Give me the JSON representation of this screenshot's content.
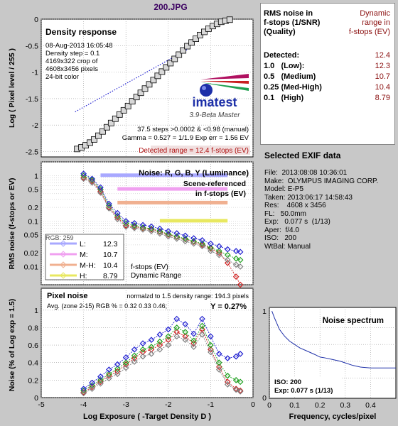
{
  "title": "200.JPG",
  "density_panel": {
    "label": "Density response",
    "info": [
      "08-Aug-2013 16:05:48",
      "Density step = 0.1",
      "4169x322 crop of",
      "4608x3456 pixels",
      "24-bit color"
    ],
    "logo": "imatest",
    "version": "3.9-Beta  Master",
    "steps_line": "37.5 steps >0.0002 & <0.98 (manual)",
    "gamma_line": "Gamma = 0.527 = 1/1.9  Exp err = 1.56 EV",
    "detected_range": "Detected range = 12.4 f-stops (EV)",
    "ylabel": "Log ( Pixel level / 255 )"
  },
  "noise_panel": {
    "label": "Noise: R, G, B, Y (Luminance)",
    "scene1": "Scene-referenced",
    "scene2": "in f-stops (EV)",
    "ylabel": "RMS noise (f-stops or EV)",
    "partial": "RGB: 259",
    "legend": [
      {
        "label": "L:",
        "value": "12.3",
        "color": "#a8a8ff"
      },
      {
        "label": "M:",
        "value": "10.7",
        "color": "#f0a0f0"
      },
      {
        "label": "M-H:",
        "value": "10.4",
        "color": "#f0b090"
      },
      {
        "label": "H:",
        "value": "8.79",
        "color": "#e8e860"
      }
    ],
    "legend_note1": "f-stops (EV)",
    "legend_note2": "Dynamic Range"
  },
  "pixel_panel": {
    "label": "Pixel noise",
    "norm": "normalzd to 1.5 density range: 194.3 pixels",
    "avg": "Avg. (zone 2-15) RGB % = 0.32  0.33  0.46;",
    "y": "Y = 0.27%",
    "ylabel": "Noise (% of Log exp = 1.5)",
    "xlabel": "Log Exposure ( -Target Density D )"
  },
  "spectrum_panel": {
    "label": "Noise spectrum",
    "iso": "ISO:   200",
    "exp": "Exp:   0.077 s   (1/13)",
    "xlabel": "Frequency, cycles/pixel"
  },
  "dr_table": {
    "h1": "RMS noise in",
    "h2": "f-stops (1/SNR)",
    "h3": "(Quality)",
    "h4": "Dynamic",
    "h5": "range in",
    "h6": "f-stops (EV)",
    "rows": [
      {
        "label": "Detected:",
        "value": "12.4"
      },
      {
        "label": "1.0   (Low):",
        "value": "12.3"
      },
      {
        "label": "0.5   (Medium)",
        "value": "10.7"
      },
      {
        "label": "0.25 (Med-High)",
        "value": "10.4"
      },
      {
        "label": "0.1   (High)",
        "value": "8.79"
      }
    ]
  },
  "exif": {
    "title": "Selected EXIF data",
    "lines": [
      "File:  2013:08:08 10:36:01",
      "Make:  OLYMPUS IMAGING CORP.",
      "Model: E-P5",
      "Taken: 2013:06:17 14:58:43",
      "Res:    4608 x 3456",
      "FL:   50.0mm",
      "Exp:   0.077 s  (1/13)",
      "Aper:  f/4.0",
      "ISO:   200",
      "WtBal: Manual"
    ]
  },
  "chart_data": [
    {
      "type": "scatter",
      "name": "density",
      "xlim": [
        -5,
        0
      ],
      "ylim": [
        -2.6,
        0
      ],
      "x_ticks": [
        -5,
        -4,
        -3,
        -2,
        -1,
        0
      ],
      "y_ticks": [
        0,
        -0.5,
        -1,
        -1.5,
        -2,
        -2.5
      ],
      "y_tick_labels": [
        "0",
        "-0.5",
        "-1",
        "-1.5",
        "-2",
        "-2.5"
      ],
      "x": [
        -4.15,
        -4.05,
        -3.95,
        -3.85,
        -3.75,
        -3.65,
        -3.55,
        -3.45,
        -3.35,
        -3.25,
        -3.15,
        -3.05,
        -2.95,
        -2.85,
        -2.75,
        -2.65,
        -2.55,
        -2.45,
        -2.35,
        -2.25,
        -2.15,
        -2.05,
        -1.95,
        -1.85,
        -1.75,
        -1.65,
        -1.55,
        -1.45,
        -1.35,
        -1.25,
        -1.15,
        -1.05,
        -0.95,
        -0.85,
        -0.75,
        -0.65,
        -0.55
      ],
      "y": [
        -2.45,
        -2.42,
        -2.38,
        -2.33,
        -2.27,
        -2.2,
        -2.12,
        -2.04,
        -1.96,
        -1.88,
        -1.8,
        -1.72,
        -1.64,
        -1.55,
        -1.47,
        -1.39,
        -1.31,
        -1.23,
        -1.15,
        -1.07,
        -0.99,
        -0.91,
        -0.83,
        -0.75,
        -0.67,
        -0.59,
        -0.51,
        -0.44,
        -0.37,
        -0.3,
        -0.24,
        -0.18,
        -0.13,
        -0.09,
        -0.05,
        -0.03,
        -0.01
      ],
      "fit_x": [
        -4.2,
        -3.3,
        -2.4,
        -1.5
      ],
      "fit_y": [
        -1.75,
        -1.35,
        -0.95,
        -0.55
      ]
    },
    {
      "type": "line",
      "name": "noise",
      "log_y": true,
      "xlim": [
        -5,
        0
      ],
      "ylim": [
        0.004,
        2
      ],
      "y_ticks": [
        1,
        0.5,
        0.2,
        0.1,
        0.05,
        0.02,
        0.01
      ],
      "y_tick_labels": [
        "1",
        "0.5",
        "0.2",
        "0.1",
        "0.05",
        "0.02",
        "0.01"
      ],
      "x": [
        -4.0,
        -3.8,
        -3.6,
        -3.4,
        -3.2,
        -3.0,
        -2.8,
        -2.6,
        -2.4,
        -2.2,
        -2.0,
        -1.8,
        -1.6,
        -1.4,
        -1.2,
        -1.0,
        -0.8,
        -0.6,
        -0.4,
        -0.3
      ],
      "series": [
        {
          "name": "R",
          "color": "#d02020",
          "values": [
            0.9,
            0.75,
            0.45,
            0.2,
            0.12,
            0.08,
            0.075,
            0.07,
            0.065,
            0.058,
            0.05,
            0.045,
            0.04,
            0.035,
            0.03,
            0.025,
            0.02,
            0.012,
            0.006,
            0.003
          ]
        },
        {
          "name": "G",
          "color": "#20a020",
          "values": [
            1.0,
            0.8,
            0.5,
            0.22,
            0.13,
            0.09,
            0.08,
            0.072,
            0.068,
            0.06,
            0.052,
            0.046,
            0.041,
            0.036,
            0.032,
            0.026,
            0.022,
            0.018,
            0.015,
            0.014
          ]
        },
        {
          "name": "B",
          "color": "#2020d0",
          "values": [
            1.1,
            0.85,
            0.55,
            0.24,
            0.15,
            0.1,
            0.09,
            0.082,
            0.076,
            0.068,
            0.06,
            0.054,
            0.048,
            0.042,
            0.038,
            0.032,
            0.028,
            0.024,
            0.022,
            0.021
          ]
        },
        {
          "name": "Y",
          "color": "#808080",
          "values": [
            0.85,
            0.7,
            0.42,
            0.19,
            0.11,
            0.075,
            0.07,
            0.065,
            0.06,
            0.053,
            0.046,
            0.041,
            0.036,
            0.032,
            0.028,
            0.022,
            0.018,
            0.014,
            0.011,
            0.01
          ]
        }
      ],
      "dr_bars": [
        {
          "name": "L",
          "color": "#a8a8ff",
          "x0": -3.6,
          "x1": -0.6,
          "y": 1.0
        },
        {
          "name": "M",
          "color": "#f0a0f0",
          "x0": -3.2,
          "x1": -0.6,
          "y": 0.5
        },
        {
          "name": "M-H",
          "color": "#f0b090",
          "x0": -3.2,
          "x1": -0.6,
          "y": 0.25
        },
        {
          "name": "H",
          "color": "#e8e860",
          "x0": -2.2,
          "x1": -0.6,
          "y": 0.1
        }
      ]
    },
    {
      "type": "line",
      "name": "pixel_noise",
      "xlim": [
        -5,
        0
      ],
      "ylim": [
        0,
        1.25
      ],
      "x_ticks": [
        -5,
        -4,
        -3,
        -2,
        -1,
        0
      ],
      "y_ticks": [
        0,
        0.2,
        0.4,
        0.6,
        0.8,
        1
      ],
      "y_tick_labels": [
        "0",
        "0.2",
        "0.4",
        "0.6",
        "0.8",
        "1"
      ],
      "x": [
        -4.0,
        -3.8,
        -3.6,
        -3.4,
        -3.2,
        -3.0,
        -2.8,
        -2.6,
        -2.4,
        -2.2,
        -2.0,
        -1.8,
        -1.6,
        -1.4,
        -1.2,
        -1.0,
        -0.8,
        -0.6,
        -0.4,
        -0.3
      ],
      "series": [
        {
          "name": "R",
          "color": "#d02020",
          "values": [
            0.06,
            0.12,
            0.18,
            0.25,
            0.3,
            0.38,
            0.45,
            0.52,
            0.55,
            0.6,
            0.66,
            0.75,
            0.7,
            0.62,
            0.78,
            0.55,
            0.35,
            0.18,
            0.1,
            0.08
          ]
        },
        {
          "name": "G",
          "color": "#20a020",
          "values": [
            0.08,
            0.14,
            0.2,
            0.27,
            0.33,
            0.4,
            0.48,
            0.55,
            0.58,
            0.64,
            0.7,
            0.8,
            0.75,
            0.65,
            0.82,
            0.6,
            0.4,
            0.25,
            0.2,
            0.18
          ]
        },
        {
          "name": "B",
          "color": "#2020d0",
          "values": [
            0.1,
            0.17,
            0.24,
            0.32,
            0.38,
            0.46,
            0.55,
            0.62,
            0.66,
            0.72,
            0.78,
            0.9,
            0.84,
            0.73,
            0.9,
            0.7,
            0.5,
            0.45,
            0.47,
            0.5
          ]
        },
        {
          "name": "Y",
          "color": "#808080",
          "values": [
            0.05,
            0.1,
            0.16,
            0.22,
            0.27,
            0.34,
            0.41,
            0.47,
            0.5,
            0.55,
            0.6,
            0.7,
            0.66,
            0.58,
            0.72,
            0.52,
            0.32,
            0.15,
            0.09,
            0.07
          ]
        }
      ]
    },
    {
      "type": "line",
      "name": "spectrum",
      "xlim": [
        0,
        0.5
      ],
      "ylim": [
        0,
        1
      ],
      "x_ticks": [
        0,
        0.1,
        0.2,
        0.3,
        0.4
      ],
      "y_ticks": [
        0,
        1
      ],
      "y_tick_labels": [
        "0",
        "1"
      ],
      "x": [
        0.01,
        0.02,
        0.04,
        0.06,
        0.08,
        0.1,
        0.12,
        0.15,
        0.18,
        0.2,
        0.22,
        0.25,
        0.28,
        0.3,
        0.33,
        0.36,
        0.4,
        0.45,
        0.5
      ],
      "values": [
        1.0,
        0.92,
        0.78,
        0.7,
        0.64,
        0.6,
        0.56,
        0.52,
        0.48,
        0.45,
        0.44,
        0.42,
        0.4,
        0.38,
        0.35,
        0.33,
        0.32,
        0.32,
        0.32
      ]
    }
  ]
}
